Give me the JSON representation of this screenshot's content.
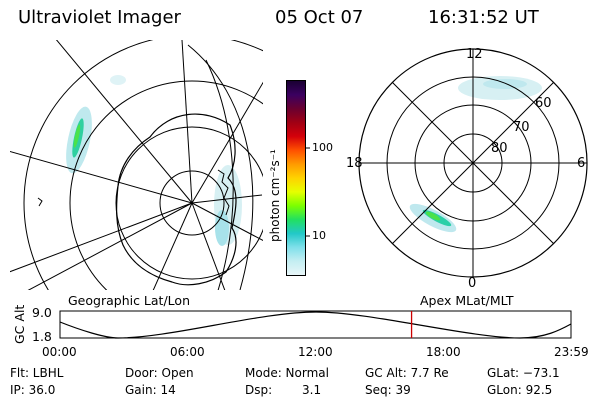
{
  "header": {
    "instrument": "Ultraviolet Imager",
    "date": "05 Oct 07",
    "time": "16:31:52 UT"
  },
  "left_panel": {
    "label": "Geographic Lat/Lon"
  },
  "right_panel": {
    "label": "Apex MLat/MLT",
    "mlt_labels": {
      "top": "12",
      "left": "18",
      "right": "6",
      "bottom": "0"
    },
    "lat_labels": [
      "60",
      "70",
      "80"
    ]
  },
  "colorbar": {
    "unit_label": "photon cm⁻²s⁻¹",
    "ticks": [
      "100",
      "10"
    ],
    "scale": "log",
    "colors": [
      "#1a0033",
      "#3b0060",
      "#6a0030",
      "#a00014",
      "#d4000a",
      "#ff5000",
      "#ff9a00",
      "#ffd200",
      "#e6ff00",
      "#7cff00",
      "#22e060",
      "#22c8c8",
      "#7fe0ea",
      "#c4eef2",
      "#e8f6f8"
    ]
  },
  "gc_alt_plot": {
    "ylabel": "GC Alt",
    "ymax": "9.0",
    "ymin": "1.8",
    "x_ticks": [
      "00:00",
      "06:00",
      "12:00",
      "18:00",
      "23:59"
    ],
    "current_time_fraction": 0.688,
    "marker_color": "#cc0000"
  },
  "info": {
    "filter": "Flt: LBHL",
    "door": "Door: Open",
    "mode": "Mode: Normal",
    "gc_alt": "GC Alt: 7.7 Re",
    "glat": "GLat: −73.1",
    "ip": "IP: 36.0",
    "gain": "Gain: 14",
    "dsp_label": "Dsp:",
    "dsp_value": "3.1",
    "seq": "Seq: 39",
    "glon": "GLon:  92.5"
  }
}
